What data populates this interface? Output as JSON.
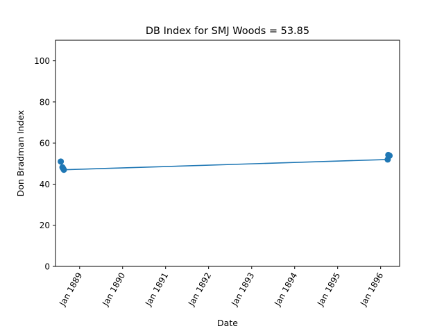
{
  "chart_data": {
    "type": "line",
    "title": "DB Index for SMJ Woods = 53.85",
    "xlabel": "Date",
    "ylabel": "Don Bradman Index",
    "ylim": [
      0,
      110
    ],
    "yticks": [
      0,
      20,
      40,
      60,
      80,
      100
    ],
    "ytick_labels": [
      "0",
      "20",
      "40",
      "60",
      "80",
      "100"
    ],
    "xlim": [
      "1888-06-10",
      "1896-06-10"
    ],
    "xticks": [
      "1889-01-01",
      "1890-01-01",
      "1891-01-01",
      "1892-01-01",
      "1893-01-01",
      "1894-01-01",
      "1895-01-01",
      "1896-01-01"
    ],
    "xtick_labels": [
      "Jan 1889",
      "Jan 1890",
      "Jan 1891",
      "Jan 1892",
      "Jan 1893",
      "Jan 1894",
      "Jan 1895",
      "Jan 1896"
    ],
    "grid": false,
    "series": [
      {
        "color": "#1f77b4",
        "points": [
          {
            "x": "1888-07-25",
            "y": 51.0
          },
          {
            "x": "1888-08-08",
            "y": 48.2
          },
          {
            "x": "1888-08-14",
            "y": 47.6
          },
          {
            "x": "1888-08-20",
            "y": 47.0
          },
          {
            "x": "1896-03-01",
            "y": 52.0
          },
          {
            "x": "1896-03-06",
            "y": 54.2
          },
          {
            "x": "1896-03-12",
            "y": 54.0
          },
          {
            "x": "1896-03-17",
            "y": 53.85
          }
        ]
      }
    ]
  }
}
